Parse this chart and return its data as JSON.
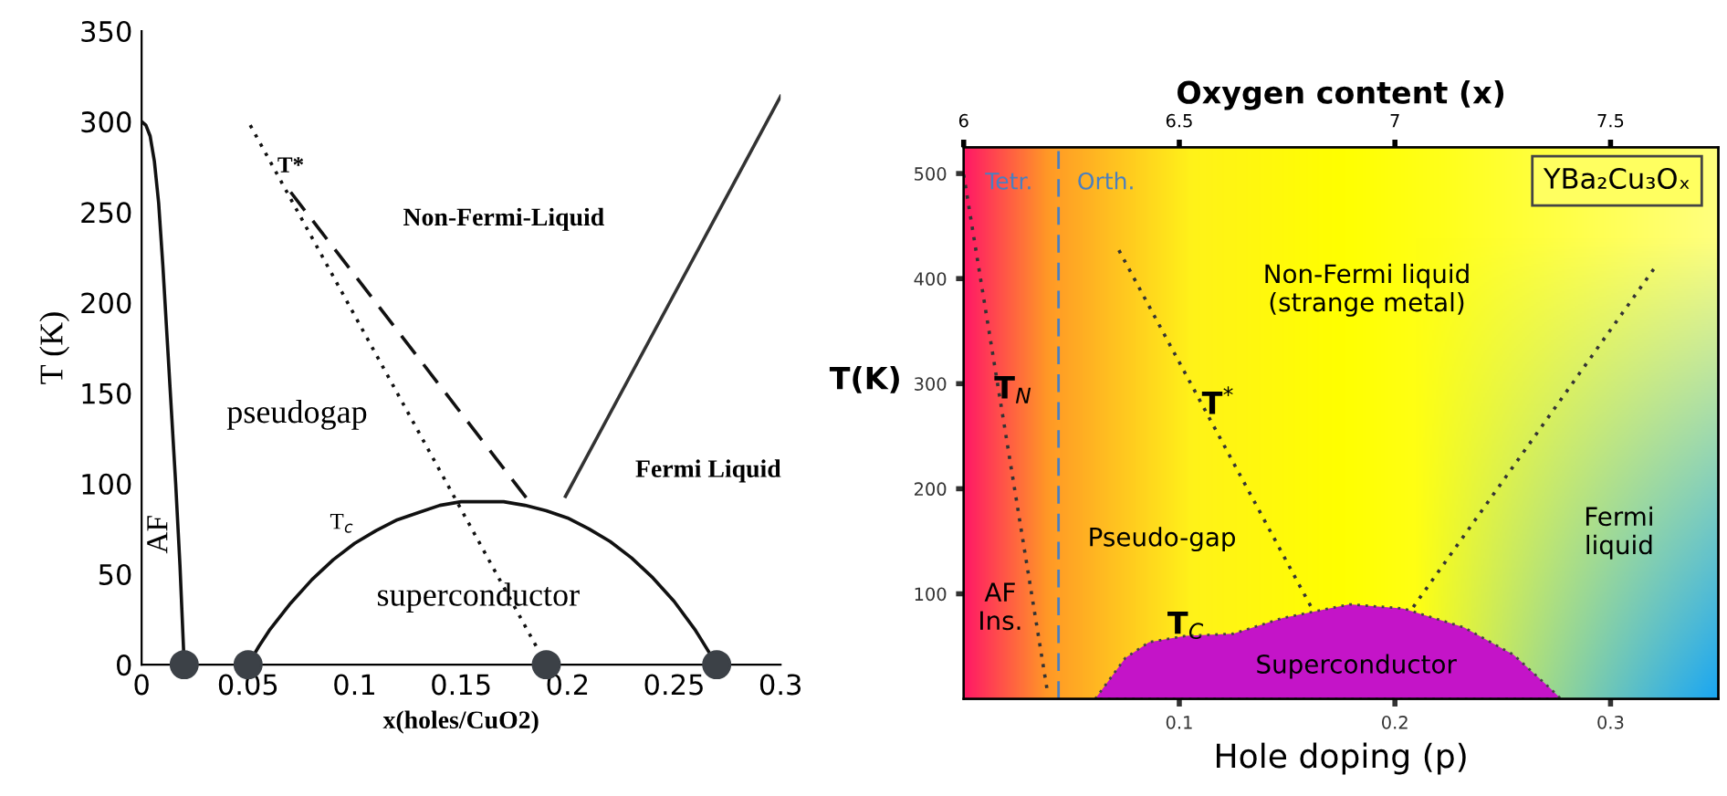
{
  "chart_data": [
    {
      "type": "line",
      "xlabel": "x(holes/CuO2)",
      "ylabel": "T (K)",
      "xlim": [
        0,
        0.3
      ],
      "ylim": [
        0,
        350
      ],
      "xticks": [
        0,
        0.05,
        0.1,
        0.15,
        0.2,
        0.25,
        0.3
      ],
      "yticks": [
        0,
        50,
        100,
        150,
        200,
        250,
        300,
        350
      ],
      "grid": false,
      "series": [
        {
          "type": "line",
          "color": "#111111",
          "line_style": "solid",
          "x": [
            0,
            0.002,
            0.004,
            0.006,
            0.008,
            0.01,
            0.012,
            0.014,
            0.016,
            0.018,
            0.02
          ],
          "values": [
            300,
            298,
            292,
            278,
            255,
            220,
            180,
            140,
            100,
            55,
            0
          ]
        },
        {
          "type": "line",
          "color": "#111111",
          "line_style": "solid",
          "x": [
            0.05,
            0.055,
            0.06,
            0.07,
            0.08,
            0.09,
            0.1,
            0.11,
            0.12,
            0.13,
            0.14,
            0.15,
            0.16,
            0.17,
            0.18,
            0.19,
            0.2,
            0.21,
            0.22,
            0.23,
            0.24,
            0.25,
            0.26,
            0.27
          ],
          "values": [
            0,
            10,
            19,
            34,
            47,
            58,
            67,
            74,
            80,
            84,
            88,
            90,
            90,
            90,
            88,
            85,
            81,
            75,
            68,
            59,
            48,
            35,
            19,
            0
          ]
        },
        {
          "type": "line",
          "color": "#111111",
          "line_style": "dotted",
          "x": [
            0.051,
            0.19
          ],
          "values": [
            298,
            0
          ]
        },
        {
          "type": "line",
          "color": "#111111",
          "line_style": "dashed",
          "x": [
            0.07,
            0.184
          ],
          "values": [
            261,
            87
          ]
        },
        {
          "type": "line",
          "color": "#333333",
          "line_style": "solid",
          "x": [
            0.199,
            0.3
          ],
          "values": [
            93,
            314
          ]
        },
        {
          "type": "scatter",
          "color": "#3c4147",
          "marker": "circle",
          "x": [
            0.02,
            0.05,
            0.19,
            0.27
          ],
          "values": [
            0,
            0,
            0,
            0
          ]
        }
      ],
      "annotations": [
        "AF",
        "pseudogap",
        "Non-Fermi-Liquid",
        "Fermi Liquid",
        "superconductor",
        "T$_{c}$",
        "T*"
      ]
    },
    {
      "type": "line",
      "xlabel": "Hole doping (p)",
      "ylabel": "T(K)",
      "x2label": "Oxygen content (x)",
      "xlim": [
        0,
        0.35
      ],
      "ylim": [
        0,
        525
      ],
      "x2lim": [
        6,
        7.75
      ],
      "xticks": [
        0.1,
        0.2,
        0.3
      ],
      "yticks": [
        100,
        200,
        300,
        400,
        500
      ],
      "x2ticks": [
        6,
        6.5,
        7,
        7.5
      ],
      "grid": false,
      "series": [
        {
          "type": "line",
          "color": "#333333",
          "line_style": "dotted",
          "x": [
            0,
            0.039
          ],
          "values": [
            499,
            5
          ]
        },
        {
          "type": "line",
          "color": "#333333",
          "line_style": "dotted",
          "x": [
            0.072,
            0.161
          ],
          "values": [
            427,
            88
          ]
        },
        {
          "type": "line",
          "color": "#333333",
          "line_style": "dotted",
          "x": [
            0.32,
            0.208
          ],
          "values": [
            409,
            86
          ]
        },
        {
          "type": "area",
          "color": "#c414c8",
          "line_style": "dotted",
          "x": [
            0.061,
            0.075,
            0.086,
            0.103,
            0.125,
            0.148,
            0.179,
            0.204,
            0.232,
            0.255,
            0.272,
            0.277
          ],
          "values": [
            0,
            39,
            54,
            60,
            62,
            77,
            90,
            86,
            68,
            42,
            10,
            0
          ]
        }
      ],
      "ref_lines": [
        {
          "axis": "x",
          "value": 0.044,
          "color": "#4a7fc0",
          "line_style": "dashed"
        }
      ],
      "annotations": [
        "Tetr.",
        "Orth.",
        "YBa₂Cu₃Oₓ",
        "Non-Fermi liquid\n(strange metal)",
        "T$_{N}$",
        "T$^{*}$",
        "Pseudo-gap",
        "Fermi\nliquid",
        "AF\nIns.",
        "T$_{C}$",
        "Superconductor"
      ]
    }
  ]
}
